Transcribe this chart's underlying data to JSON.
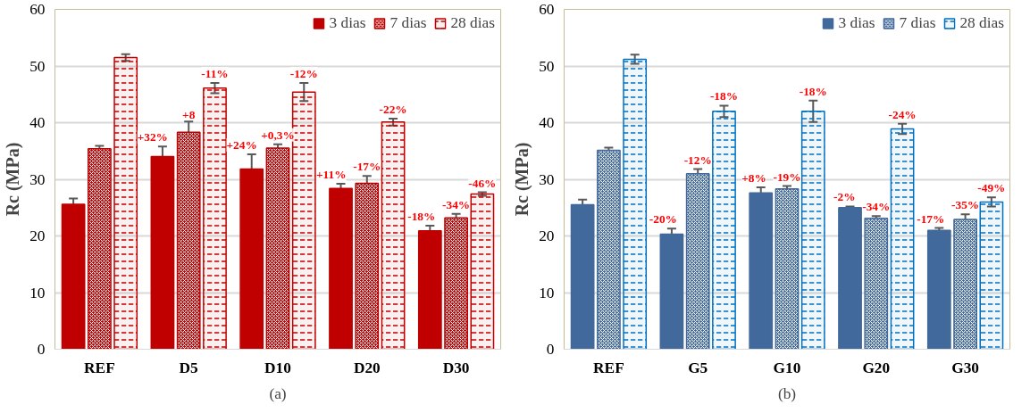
{
  "chart_data": [
    {
      "type": "bar",
      "ylabel": "Rc (MPa)",
      "categories": [
        "REF",
        "D5",
        "D10",
        "D20",
        "D30"
      ],
      "ylim": [
        0,
        60
      ],
      "yticks": [
        0,
        10,
        20,
        30,
        40,
        50,
        60
      ],
      "grid": "y",
      "legend": "top right",
      "annotations": [
        "(a)",
        "+32%",
        "+24%",
        "+11%",
        "-18%",
        "+8",
        "+0,3%",
        "-17%",
        "-34%",
        "-11%",
        "-12%",
        "-22%",
        "-46%"
      ],
      "series": [
        {
          "name": "3 dias",
          "color": "#c00000",
          "values": [
            25.6,
            34.0,
            31.8,
            28.4,
            20.9
          ],
          "errors": [
            1.0,
            1.8,
            2.6,
            0.8,
            0.9
          ]
        },
        {
          "name": "7 dias",
          "color": "#c00000",
          "values": [
            35.4,
            38.3,
            35.5,
            29.3,
            23.2
          ],
          "errors": [
            0.5,
            1.9,
            0.7,
            1.3,
            0.7
          ]
        },
        {
          "name": "28 dias",
          "color": "#c00000",
          "values": [
            51.5,
            46.1,
            45.4,
            40.1,
            27.4
          ],
          "errors": [
            0.6,
            0.9,
            1.6,
            0.6,
            0.3
          ]
        }
      ]
    },
    {
      "type": "bar",
      "ylabel": "Rc (MPa)",
      "categories": [
        "REF",
        "G5",
        "G10",
        "G20",
        "G30"
      ],
      "ylim": [
        0,
        60
      ],
      "yticks": [
        0,
        10,
        20,
        30,
        40,
        50,
        60
      ],
      "grid": "y",
      "legend": "top right",
      "annotations": [
        "(b)",
        "-20%",
        "+8%",
        "-2%",
        "-17%",
        "-12%",
        "-19%",
        "-34%",
        "-35%",
        "-18%",
        "-18%",
        "-24%",
        "-49%"
      ],
      "series": [
        {
          "name": "3 dias",
          "color": "#41699c",
          "values": [
            25.5,
            20.3,
            27.6,
            25.0,
            21.0
          ],
          "errors": [
            0.9,
            1.0,
            1.0,
            0.2,
            0.4
          ]
        },
        {
          "name": "7 dias",
          "color": "#41699c",
          "values": [
            35.1,
            31.0,
            28.3,
            23.1,
            22.9
          ],
          "errors": [
            0.5,
            0.8,
            0.5,
            0.4,
            0.9
          ]
        },
        {
          "name": "28 dias",
          "color": "#0070c0",
          "values": [
            51.2,
            42.0,
            42.0,
            38.9,
            26.0
          ],
          "errors": [
            0.8,
            1.0,
            1.9,
            0.9,
            0.8
          ]
        }
      ]
    }
  ]
}
